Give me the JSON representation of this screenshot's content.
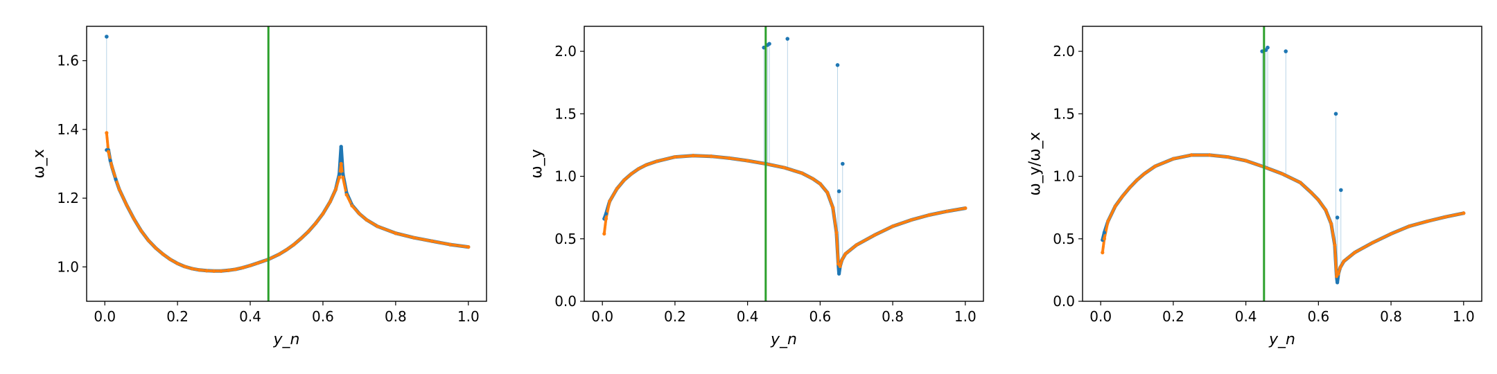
{
  "chart_data": [
    {
      "type": "scatter",
      "xlabel": "y_n",
      "ylabel": "ω_x",
      "xlim": [
        -0.05,
        1.05
      ],
      "ylim": [
        0.9,
        1.7
      ],
      "xticks": [
        "0.0",
        "0.2",
        "0.4",
        "0.6",
        "0.8",
        "1.0"
      ],
      "yticks": [
        "1.0",
        "1.2",
        "1.4",
        "1.6"
      ],
      "ytick_values": [
        1.0,
        1.2,
        1.4,
        1.6
      ],
      "vline_x": 0.45,
      "kind": "omega_x",
      "spikes": [
        [
          0.005,
          1.67
        ]
      ],
      "series": [
        {
          "color": "#1f77b4",
          "x": [
            0.005,
            0.01,
            0.015,
            0.02,
            0.03,
            0.04,
            0.06,
            0.08,
            0.1,
            0.12,
            0.14,
            0.16,
            0.18,
            0.2,
            0.22,
            0.24,
            0.26,
            0.28,
            0.3,
            0.32,
            0.34,
            0.36,
            0.38,
            0.4,
            0.42,
            0.45,
            0.48,
            0.5,
            0.52,
            0.54,
            0.56,
            0.58,
            0.6,
            0.62,
            0.635,
            0.645,
            0.65,
            0.655,
            0.665,
            0.68,
            0.7,
            0.72,
            0.75,
            0.8,
            0.85,
            0.9,
            0.95,
            1.0
          ],
          "y": [
            1.34,
            1.34,
            1.31,
            1.29,
            1.255,
            1.225,
            1.18,
            1.14,
            1.105,
            1.077,
            1.055,
            1.037,
            1.022,
            1.01,
            1.001,
            0.995,
            0.991,
            0.989,
            0.988,
            0.988,
            0.99,
            0.993,
            0.998,
            1.004,
            1.011,
            1.022,
            1.037,
            1.05,
            1.065,
            1.083,
            1.103,
            1.127,
            1.155,
            1.19,
            1.225,
            1.27,
            1.35,
            1.27,
            1.215,
            1.18,
            1.155,
            1.137,
            1.118,
            1.098,
            1.085,
            1.075,
            1.065,
            1.058
          ]
        },
        {
          "color": "#ff7f0e",
          "x": [
            0.005,
            0.01,
            0.02,
            0.04,
            0.06,
            0.08,
            0.1,
            0.12,
            0.14,
            0.16,
            0.18,
            0.2,
            0.22,
            0.24,
            0.26,
            0.28,
            0.3,
            0.32,
            0.34,
            0.36,
            0.38,
            0.4,
            0.42,
            0.45,
            0.48,
            0.5,
            0.52,
            0.54,
            0.56,
            0.58,
            0.6,
            0.62,
            0.635,
            0.645,
            0.65,
            0.655,
            0.665,
            0.68,
            0.7,
            0.72,
            0.75,
            0.8,
            0.85,
            0.9,
            0.95,
            1.0
          ],
          "y": [
            1.39,
            1.335,
            1.29,
            1.225,
            1.18,
            1.14,
            1.105,
            1.077,
            1.055,
            1.037,
            1.022,
            1.01,
            1.001,
            0.995,
            0.991,
            0.989,
            0.988,
            0.988,
            0.99,
            0.993,
            0.998,
            1.004,
            1.011,
            1.022,
            1.037,
            1.05,
            1.065,
            1.083,
            1.103,
            1.127,
            1.155,
            1.19,
            1.225,
            1.26,
            1.3,
            1.26,
            1.21,
            1.178,
            1.155,
            1.137,
            1.118,
            1.098,
            1.085,
            1.075,
            1.065,
            1.058
          ]
        }
      ]
    },
    {
      "type": "scatter",
      "xlabel": "y_n",
      "ylabel": "ω_y",
      "xlim": [
        -0.05,
        1.05
      ],
      "ylim": [
        0.0,
        2.2
      ],
      "xticks": [
        "0.0",
        "0.2",
        "0.4",
        "0.6",
        "0.8",
        "1.0"
      ],
      "yticks": [
        "0.0",
        "0.5",
        "1.0",
        "1.5",
        "2.0"
      ],
      "ytick_values": [
        0.0,
        0.5,
        1.0,
        1.5,
        2.0
      ],
      "vline_x": 0.45,
      "kind": "omega_y",
      "spikes": [
        [
          0.445,
          2.03
        ],
        [
          0.455,
          2.05
        ],
        [
          0.46,
          2.06
        ],
        [
          0.51,
          2.1
        ],
        [
          0.648,
          1.89
        ],
        [
          0.652,
          0.88
        ],
        [
          0.662,
          1.1
        ]
      ],
      "series": [
        {
          "color": "#1f77b4",
          "x": [
            0.005,
            0.01,
            0.02,
            0.04,
            0.06,
            0.08,
            0.1,
            0.12,
            0.15,
            0.2,
            0.25,
            0.3,
            0.35,
            0.4,
            0.45,
            0.5,
            0.55,
            0.58,
            0.6,
            0.62,
            0.635,
            0.645,
            0.65,
            0.652,
            0.655,
            0.66,
            0.67,
            0.7,
            0.75,
            0.8,
            0.85,
            0.9,
            0.95,
            1.0
          ],
          "y": [
            0.66,
            0.7,
            0.8,
            0.9,
            0.97,
            1.02,
            1.06,
            1.09,
            1.12,
            1.155,
            1.165,
            1.16,
            1.145,
            1.125,
            1.1,
            1.07,
            1.025,
            0.98,
            0.94,
            0.87,
            0.75,
            0.55,
            0.3,
            0.22,
            0.28,
            0.33,
            0.38,
            0.45,
            0.53,
            0.6,
            0.65,
            0.69,
            0.72,
            0.745
          ]
        },
        {
          "color": "#ff7f0e",
          "x": [
            0.005,
            0.01,
            0.02,
            0.04,
            0.06,
            0.08,
            0.1,
            0.12,
            0.15,
            0.2,
            0.25,
            0.3,
            0.35,
            0.4,
            0.45,
            0.5,
            0.55,
            0.58,
            0.6,
            0.62,
            0.635,
            0.645,
            0.65,
            0.655,
            0.66,
            0.67,
            0.7,
            0.75,
            0.8,
            0.85,
            0.9,
            0.95,
            1.0
          ],
          "y": [
            0.54,
            0.66,
            0.8,
            0.9,
            0.97,
            1.02,
            1.06,
            1.09,
            1.12,
            1.155,
            1.165,
            1.16,
            1.145,
            1.125,
            1.1,
            1.07,
            1.025,
            0.98,
            0.94,
            0.87,
            0.75,
            0.55,
            0.3,
            0.28,
            0.33,
            0.38,
            0.45,
            0.53,
            0.6,
            0.65,
            0.69,
            0.72,
            0.745
          ]
        }
      ]
    },
    {
      "type": "scatter",
      "xlabel": "y_n",
      "ylabel": "ω_y/ω_x",
      "xlim": [
        -0.05,
        1.05
      ],
      "ylim": [
        0.0,
        2.2
      ],
      "xticks": [
        "0.0",
        "0.2",
        "0.4",
        "0.6",
        "0.8",
        "1.0"
      ],
      "yticks": [
        "0.0",
        "0.5",
        "1.0",
        "1.5",
        "2.0"
      ],
      "ytick_values": [
        0.0,
        0.5,
        1.0,
        1.5,
        2.0
      ],
      "vline_x": 0.45,
      "kind": "ratio",
      "spikes": [
        [
          0.445,
          2.0
        ],
        [
          0.455,
          2.01
        ],
        [
          0.46,
          2.03
        ],
        [
          0.51,
          2.0
        ],
        [
          0.648,
          1.5
        ],
        [
          0.652,
          0.67
        ],
        [
          0.662,
          0.89
        ]
      ],
      "series": [
        {
          "color": "#1f77b4",
          "x": [
            0.005,
            0.01,
            0.02,
            0.04,
            0.06,
            0.08,
            0.1,
            0.12,
            0.15,
            0.2,
            0.25,
            0.3,
            0.35,
            0.4,
            0.45,
            0.5,
            0.55,
            0.58,
            0.6,
            0.62,
            0.635,
            0.645,
            0.65,
            0.652,
            0.655,
            0.66,
            0.67,
            0.7,
            0.75,
            0.8,
            0.85,
            0.9,
            0.95,
            1.0
          ],
          "y": [
            0.49,
            0.55,
            0.64,
            0.76,
            0.84,
            0.91,
            0.97,
            1.02,
            1.08,
            1.14,
            1.17,
            1.17,
            1.155,
            1.125,
            1.075,
            1.02,
            0.95,
            0.87,
            0.81,
            0.73,
            0.62,
            0.45,
            0.2,
            0.15,
            0.22,
            0.27,
            0.32,
            0.39,
            0.47,
            0.54,
            0.6,
            0.64,
            0.675,
            0.705
          ]
        },
        {
          "color": "#ff7f0e",
          "x": [
            0.005,
            0.01,
            0.02,
            0.04,
            0.06,
            0.08,
            0.1,
            0.12,
            0.15,
            0.2,
            0.25,
            0.3,
            0.35,
            0.4,
            0.45,
            0.5,
            0.55,
            0.58,
            0.6,
            0.62,
            0.635,
            0.645,
            0.65,
            0.655,
            0.66,
            0.67,
            0.7,
            0.75,
            0.8,
            0.85,
            0.9,
            0.95,
            1.0
          ],
          "y": [
            0.39,
            0.5,
            0.64,
            0.76,
            0.84,
            0.91,
            0.97,
            1.02,
            1.08,
            1.14,
            1.17,
            1.17,
            1.155,
            1.125,
            1.075,
            1.02,
            0.95,
            0.87,
            0.81,
            0.73,
            0.62,
            0.45,
            0.2,
            0.22,
            0.27,
            0.32,
            0.39,
            0.47,
            0.54,
            0.6,
            0.64,
            0.675,
            0.705
          ]
        }
      ]
    }
  ]
}
